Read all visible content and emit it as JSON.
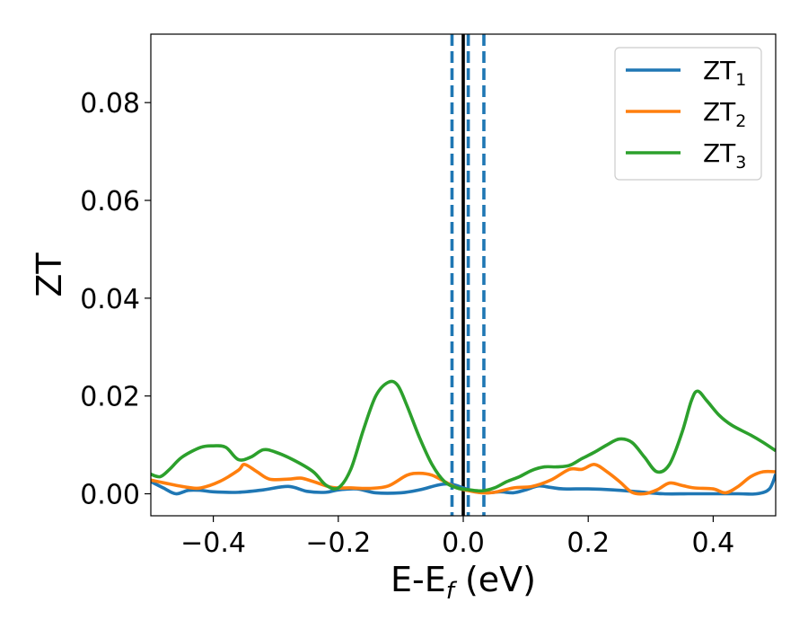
{
  "chart_data": {
    "type": "line",
    "title": "",
    "xlabel": "E-E",
    "xlabel_sub": "f",
    "xlabel_unit": " (eV)",
    "ylabel": "ZT",
    "xlim": [
      -0.5,
      0.5
    ],
    "ylim": [
      -0.0045,
      0.094
    ],
    "grid": false,
    "legend_position": "top-right",
    "x_ticks": [
      -0.4,
      -0.2,
      0.0,
      0.2,
      0.4
    ],
    "x_tick_labels": [
      "−0.4",
      "−0.2",
      "0.0",
      "0.2",
      "0.4"
    ],
    "y_ticks": [
      0.0,
      0.02,
      0.04,
      0.06,
      0.08
    ],
    "y_tick_labels": [
      "0.00",
      "0.02",
      "0.04",
      "0.06",
      "0.08"
    ],
    "reference_lines": [
      {
        "x": 0.0,
        "style": "solid",
        "color": "#000000"
      },
      {
        "x": -0.018,
        "style": "dashed",
        "color": "#1f77b4"
      },
      {
        "x": 0.008,
        "style": "dashed",
        "color": "#1f77b4"
      },
      {
        "x": 0.033,
        "style": "dashed",
        "color": "#1f77b4"
      }
    ],
    "series": [
      {
        "name": "ZT",
        "name_sub": "1",
        "color": "#1f77b4",
        "points": [
          [
            -0.5,
            0.0025
          ],
          [
            -0.48,
            0.0012
          ],
          [
            -0.46,
            0.0
          ],
          [
            -0.44,
            0.0007
          ],
          [
            -0.42,
            0.0007
          ],
          [
            -0.4,
            0.0004
          ],
          [
            -0.36,
            0.0003
          ],
          [
            -0.32,
            0.0008
          ],
          [
            -0.28,
            0.0015
          ],
          [
            -0.25,
            0.0005
          ],
          [
            -0.22,
            0.0003
          ],
          [
            -0.2,
            0.0008
          ],
          [
            -0.17,
            0.001
          ],
          [
            -0.14,
            0.0002
          ],
          [
            -0.1,
            0.0002
          ],
          [
            -0.07,
            0.0008
          ],
          [
            -0.04,
            0.0018
          ],
          [
            -0.02,
            0.002
          ],
          [
            0.0,
            0.0012
          ],
          [
            0.02,
            0.0004
          ],
          [
            0.04,
            0.0002
          ],
          [
            0.06,
            0.0004
          ],
          [
            0.08,
            0.0002
          ],
          [
            0.1,
            0.0008
          ],
          [
            0.12,
            0.0016
          ],
          [
            0.14,
            0.0013
          ],
          [
            0.16,
            0.001
          ],
          [
            0.2,
            0.001
          ],
          [
            0.24,
            0.0008
          ],
          [
            0.28,
            0.0004
          ],
          [
            0.32,
            0.0
          ],
          [
            0.36,
            0.0
          ],
          [
            0.4,
            0.0
          ],
          [
            0.44,
            0.0
          ],
          [
            0.47,
            0.0
          ],
          [
            0.49,
            0.001
          ],
          [
            0.5,
            0.004
          ]
        ]
      },
      {
        "name": "ZT",
        "name_sub": "2",
        "color": "#ff7f0e",
        "points": [
          [
            -0.5,
            0.0028
          ],
          [
            -0.47,
            0.002
          ],
          [
            -0.44,
            0.0013
          ],
          [
            -0.42,
            0.0012
          ],
          [
            -0.39,
            0.0025
          ],
          [
            -0.36,
            0.0048
          ],
          [
            -0.35,
            0.006
          ],
          [
            -0.33,
            0.0045
          ],
          [
            -0.31,
            0.003
          ],
          [
            -0.28,
            0.003
          ],
          [
            -0.26,
            0.0032
          ],
          [
            -0.24,
            0.0025
          ],
          [
            -0.21,
            0.0013
          ],
          [
            -0.18,
            0.0012
          ],
          [
            -0.15,
            0.0011
          ],
          [
            -0.12,
            0.0016
          ],
          [
            -0.09,
            0.0038
          ],
          [
            -0.07,
            0.0042
          ],
          [
            -0.05,
            0.0038
          ],
          [
            -0.03,
            0.0025
          ],
          [
            -0.01,
            0.0012
          ],
          [
            0.01,
            0.0006
          ],
          [
            0.03,
            0.0002
          ],
          [
            0.05,
            0.0003
          ],
          [
            0.08,
            0.0012
          ],
          [
            0.11,
            0.0015
          ],
          [
            0.14,
            0.0028
          ],
          [
            0.17,
            0.005
          ],
          [
            0.19,
            0.005
          ],
          [
            0.21,
            0.006
          ],
          [
            0.23,
            0.0045
          ],
          [
            0.25,
            0.0025
          ],
          [
            0.27,
            0.0003
          ],
          [
            0.29,
            0.0
          ],
          [
            0.31,
            0.0008
          ],
          [
            0.33,
            0.0022
          ],
          [
            0.35,
            0.0017
          ],
          [
            0.37,
            0.0012
          ],
          [
            0.4,
            0.001
          ],
          [
            0.42,
            0.0002
          ],
          [
            0.44,
            0.0015
          ],
          [
            0.46,
            0.0035
          ],
          [
            0.48,
            0.0045
          ],
          [
            0.5,
            0.0045
          ]
        ]
      },
      {
        "name": "ZT",
        "name_sub": "3",
        "color": "#2ca02c",
        "points": [
          [
            -0.5,
            0.004
          ],
          [
            -0.485,
            0.0035
          ],
          [
            -0.47,
            0.005
          ],
          [
            -0.45,
            0.0075
          ],
          [
            -0.42,
            0.0095
          ],
          [
            -0.4,
            0.0098
          ],
          [
            -0.38,
            0.0095
          ],
          [
            -0.36,
            0.007
          ],
          [
            -0.34,
            0.0075
          ],
          [
            -0.32,
            0.009
          ],
          [
            -0.3,
            0.0085
          ],
          [
            -0.27,
            0.0068
          ],
          [
            -0.24,
            0.0045
          ],
          [
            -0.22,
            0.0018
          ],
          [
            -0.2,
            0.0012
          ],
          [
            -0.18,
            0.005
          ],
          [
            -0.16,
            0.013
          ],
          [
            -0.14,
            0.02
          ],
          [
            -0.12,
            0.0228
          ],
          [
            -0.105,
            0.0222
          ],
          [
            -0.09,
            0.018
          ],
          [
            -0.07,
            0.0115
          ],
          [
            -0.05,
            0.006
          ],
          [
            -0.03,
            0.0025
          ],
          [
            -0.01,
            0.0012
          ],
          [
            0.01,
            0.0008
          ],
          [
            0.03,
            0.0006
          ],
          [
            0.05,
            0.0012
          ],
          [
            0.07,
            0.0025
          ],
          [
            0.09,
            0.0035
          ],
          [
            0.11,
            0.0048
          ],
          [
            0.13,
            0.0055
          ],
          [
            0.15,
            0.0055
          ],
          [
            0.17,
            0.0058
          ],
          [
            0.19,
            0.0072
          ],
          [
            0.21,
            0.0085
          ],
          [
            0.23,
            0.01
          ],
          [
            0.25,
            0.0112
          ],
          [
            0.27,
            0.0105
          ],
          [
            0.29,
            0.0075
          ],
          [
            0.31,
            0.0045
          ],
          [
            0.33,
            0.006
          ],
          [
            0.35,
            0.0125
          ],
          [
            0.365,
            0.019
          ],
          [
            0.375,
            0.021
          ],
          [
            0.39,
            0.019
          ],
          [
            0.41,
            0.016
          ],
          [
            0.43,
            0.014
          ],
          [
            0.46,
            0.012
          ],
          [
            0.48,
            0.0105
          ],
          [
            0.5,
            0.0088
          ]
        ]
      }
    ]
  }
}
